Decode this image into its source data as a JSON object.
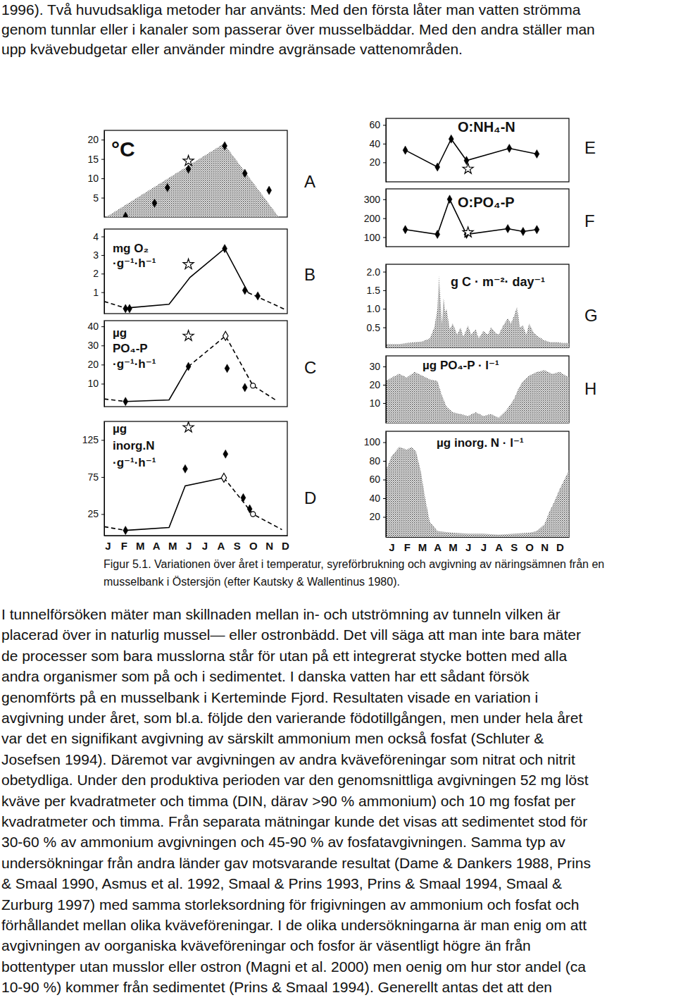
{
  "text_top": [
    "1996). Två huvudsakliga metoder har använts: Med den första låter man vatten strömma",
    "genom tunnlar eller i kanaler som passerar över musselbäddar. Med den andra ställer man",
    "upp kvävebudgetar eller använder mindre avgränsade vattenområden."
  ],
  "chart_data": [
    {
      "type": "line",
      "title": "A",
      "y_label": [
        "°C"
      ],
      "xlim": [
        -0.22,
        11.13
      ],
      "ylim": [
        0,
        22.4
      ],
      "yticks": [
        5,
        10,
        15,
        20
      ],
      "tick_labels": "y",
      "series": [
        {
          "type": "area",
          "color": "#444444",
          "x": [
            -0.1,
            7.2,
            10.6
          ],
          "values": [
            0,
            19,
            0
          ]
        },
        {
          "type": "scatter",
          "marker": "diamond",
          "color": "#000000",
          "x": [
            1.1,
            2.9,
            3.7,
            5.0,
            7.25,
            8.5,
            10.0
          ],
          "values": [
            0.2,
            3.6,
            7.6,
            12.4,
            18.4,
            11.3,
            6.9
          ]
        },
        {
          "type": "scatter",
          "marker": "star",
          "color": "#000000",
          "x": [
            5.0
          ],
          "values": [
            14.5
          ]
        }
      ]
    },
    {
      "type": "line",
      "title": "B",
      "y_label": [
        "mg O₂",
        "·g⁻¹·h⁻¹"
      ],
      "xlim": [
        -0.22,
        11.13
      ],
      "ylim": [
        -0.15,
        4.4
      ],
      "yticks": [
        1,
        2,
        3,
        4
      ],
      "tick_labels": "y",
      "series": [
        {
          "type": "line",
          "line_style": "dashed",
          "color": "#000000",
          "x": [
            -0.22,
            1.1
          ],
          "values": [
            0.5,
            0.15
          ]
        },
        {
          "type": "line",
          "line_style": "solid",
          "color": "#000000",
          "x": [
            1.1,
            3.8,
            5.1,
            7.25,
            8.7
          ],
          "values": [
            0.15,
            0.35,
            1.8,
            3.35,
            0.98
          ]
        },
        {
          "type": "line",
          "line_style": "dashed",
          "color": "#000000",
          "x": [
            8.7,
            11.05
          ],
          "values": [
            0.98,
            0.05
          ]
        },
        {
          "type": "scatter",
          "marker": "diamond",
          "color": "#000000",
          "x": [
            1.1,
            1.35,
            7.25,
            8.5,
            9.3
          ],
          "values": [
            0.12,
            0.12,
            3.35,
            1.1,
            0.8
          ]
        },
        {
          "type": "scatter",
          "marker": "star",
          "color": "#000000",
          "x": [
            5.0
          ],
          "values": [
            2.5
          ]
        }
      ]
    },
    {
      "type": "line",
      "title": "C",
      "y_label": [
        "µg",
        "PO₄-P",
        "·g⁻¹·h⁻¹"
      ],
      "xlim": [
        -0.22,
        11.13
      ],
      "ylim": [
        -2,
        43
      ],
      "yticks": [
        10,
        20,
        30,
        40
      ],
      "tick_labels": "y",
      "series": [
        {
          "type": "line",
          "line_style": "dashed",
          "color": "#000000",
          "x": [
            -0.22,
            1.1
          ],
          "values": [
            2,
            0.7
          ]
        },
        {
          "type": "line",
          "line_style": "solid",
          "color": "#000000",
          "x": [
            1.1,
            3.8,
            5.0
          ],
          "values": [
            0.7,
            1.5,
            19
          ]
        },
        {
          "type": "line",
          "line_style": "dashed",
          "color": "#000000",
          "x": [
            5.0,
            7.3,
            9.0,
            10.4
          ],
          "values": [
            19,
            35,
            9,
            1.5
          ]
        },
        {
          "type": "scatter",
          "marker": "diamond",
          "color": "#000000",
          "x": [
            1.1,
            5.0,
            7.4,
            8.5
          ],
          "values": [
            0.7,
            19,
            18,
            8
          ]
        },
        {
          "type": "scatter",
          "marker": "open_diamond",
          "color": "#000000",
          "x": [
            7.3
          ],
          "values": [
            35
          ]
        },
        {
          "type": "scatter",
          "marker": "open_circle",
          "color": "#000000",
          "x": [
            9.0
          ],
          "values": [
            9
          ]
        },
        {
          "type": "scatter",
          "marker": "star",
          "color": "#000000",
          "x": [
            5.0
          ],
          "values": [
            35
          ]
        }
      ]
    },
    {
      "type": "line",
      "title": "D",
      "y_label": [
        "µg",
        "inorg.N",
        "·g⁻¹·h⁻¹"
      ],
      "xlim": [
        -0.22,
        11.13
      ],
      "ylim": [
        -4,
        150
      ],
      "yticks": [
        25,
        75,
        125
      ],
      "xticks": [
        {
          "value": 0,
          "label": "J"
        },
        {
          "value": 1,
          "label": "F"
        },
        {
          "value": 2,
          "label": "M"
        },
        {
          "value": 3,
          "label": "A"
        },
        {
          "value": 4,
          "label": "M"
        },
        {
          "value": 5,
          "label": "J"
        },
        {
          "value": 6,
          "label": "J"
        },
        {
          "value": 7,
          "label": "A"
        },
        {
          "value": 8,
          "label": "S"
        },
        {
          "value": 9,
          "label": "O"
        },
        {
          "value": 10,
          "label": "N"
        },
        {
          "value": 11,
          "label": "D"
        }
      ],
      "series": [
        {
          "type": "line",
          "line_style": "dashed",
          "color": "#000000",
          "x": [
            -0.22,
            1.1
          ],
          "values": [
            8,
            3
          ]
        },
        {
          "type": "line",
          "line_style": "solid",
          "color": "#000000",
          "x": [
            1.1,
            3.8,
            4.8,
            7.2
          ],
          "values": [
            3,
            7,
            63,
            74
          ]
        },
        {
          "type": "line",
          "line_style": "dashed",
          "color": "#000000",
          "x": [
            7.2,
            9.0,
            10.8
          ],
          "values": [
            74,
            25,
            4
          ]
        },
        {
          "type": "scatter",
          "marker": "diamond",
          "color": "#000000",
          "x": [
            1.1,
            4.8,
            7.3,
            8.4,
            8.8
          ],
          "values": [
            3,
            86,
            106,
            47,
            32
          ]
        },
        {
          "type": "scatter",
          "marker": "open_diamond",
          "color": "#000000",
          "x": [
            7.2
          ],
          "values": [
            74
          ]
        },
        {
          "type": "scatter",
          "marker": "open_circle",
          "color": "#000000",
          "x": [
            9.0
          ],
          "values": [
            25
          ]
        },
        {
          "type": "scatter",
          "marker": "star",
          "color": "#000000",
          "x": [
            5.0
          ],
          "values": [
            142
          ]
        }
      ]
    },
    {
      "type": "line",
      "title": "E",
      "y_label": [
        "O:NH₄-N"
      ],
      "xlim": [
        -0.37,
        11.6
      ],
      "ylim": [
        -0.8,
        67
      ],
      "yticks": [
        20,
        40,
        60
      ],
      "tick_labels": "y",
      "series": [
        {
          "type": "line",
          "line_style": "solid",
          "marker": "diamond",
          "color": "#000000",
          "x": [
            0.9,
            3.0,
            3.9,
            4.9,
            7.7,
            9.5
          ],
          "values": [
            33,
            15,
            45,
            22,
            35,
            29
          ]
        },
        {
          "type": "scatter",
          "marker": "star",
          "color": "#000000",
          "x": [
            5.0
          ],
          "values": [
            13
          ]
        }
      ]
    },
    {
      "type": "line",
      "title": "F",
      "y_label": [
        "O:PO₄-P"
      ],
      "xlim": [
        -0.37,
        11.6
      ],
      "ylim": [
        50,
        355
      ],
      "yticks": [
        100,
        200,
        300
      ],
      "tick_labels": "y",
      "series": [
        {
          "type": "line",
          "line_style": "solid",
          "marker": "diamond",
          "color": "#000000",
          "x": [
            0.9,
            3.0,
            3.8,
            4.9,
            7.6,
            8.6,
            9.5
          ],
          "values": [
            140,
            115,
            300,
            115,
            145,
            130,
            140
          ]
        },
        {
          "type": "scatter",
          "marker": "star",
          "color": "#000000",
          "x": [
            5.0
          ],
          "values": [
            125
          ]
        }
      ]
    },
    {
      "type": "area",
      "title": "G",
      "y_label": [
        "g C · m⁻²· day⁻¹"
      ],
      "xlim": [
        -0.37,
        11.6
      ],
      "ylim": [
        -0.04,
        2.2
      ],
      "yticks": [
        0.5,
        {
          "value": 1,
          "label": "1.0"
        },
        1.5,
        {
          "value": 2,
          "label": "2.0"
        }
      ],
      "tick_labels": "y",
      "series": [
        {
          "type": "area",
          "color": "#444444",
          "x": [
            -0.37,
            0.5,
            1,
            1.5,
            2,
            2.5,
            2.8,
            3.0,
            3.1,
            3.2,
            3.3,
            3.4,
            3.5,
            3.6,
            3.8,
            4.0,
            4.3,
            4.5,
            4.7,
            5.0,
            5.2,
            5.5,
            5.7,
            6.0,
            6.3,
            6.5,
            6.8,
            7.0,
            7.3,
            7.6,
            7.8,
            8.0,
            8.2,
            8.4,
            8.6,
            8.8,
            9.0,
            9.3,
            9.6,
            10.0,
            10.4,
            10.8,
            11.2,
            11.6
          ],
          "values": [
            0.05,
            0.05,
            0.08,
            0.1,
            0.12,
            0.2,
            0.5,
            1.0,
            1.9,
            1.2,
            0.6,
            1.3,
            0.9,
            1.0,
            0.45,
            0.6,
            0.3,
            0.5,
            0.25,
            0.55,
            0.3,
            0.45,
            0.2,
            0.4,
            0.3,
            0.5,
            0.35,
            0.3,
            0.55,
            0.75,
            0.6,
            0.8,
            1.05,
            0.5,
            0.55,
            0.3,
            0.6,
            0.35,
            0.25,
            0.15,
            0.1,
            0.1,
            0.08,
            0.08
          ]
        }
      ]
    },
    {
      "type": "area",
      "title": "H",
      "y_label": [
        "µg PO₄-P · l⁻¹"
      ],
      "xlim": [
        -0.37,
        11.6
      ],
      "ylim": [
        -0.8,
        35.8
      ],
      "yticks": [
        10,
        20,
        30
      ],
      "tick_labels": "y",
      "series": [
        {
          "type": "area",
          "color": "#444444",
          "x": [
            -0.37,
            0,
            0.5,
            1,
            1.5,
            2,
            2.5,
            3,
            3.3,
            3.6,
            4,
            4.5,
            5,
            5.5,
            6,
            6.5,
            7,
            7.5,
            8,
            8.3,
            8.6,
            9,
            9.5,
            10,
            10.5,
            11,
            11.6
          ],
          "values": [
            22,
            24,
            26,
            24,
            27,
            25,
            23,
            22,
            14,
            8,
            5,
            4,
            3,
            5,
            3,
            4,
            2,
            6,
            12,
            18,
            22,
            25,
            27,
            28,
            26,
            27,
            24
          ]
        }
      ]
    },
    {
      "type": "area",
      "y_label": [
        "µg inorg. N · l⁻¹"
      ],
      "xlim": [
        -0.37,
        11.6
      ],
      "ylim": [
        -1.5,
        111.7
      ],
      "yticks": [
        20,
        40,
        60,
        80,
        100
      ],
      "xticks": [
        {
          "value": 0,
          "label": "J"
        },
        {
          "value": 1,
          "label": "F"
        },
        {
          "value": 2,
          "label": "M"
        },
        {
          "value": 3,
          "label": "A"
        },
        {
          "value": 4,
          "label": "M"
        },
        {
          "value": 5,
          "label": "J"
        },
        {
          "value": 6,
          "label": "J"
        },
        {
          "value": 7,
          "label": "A"
        },
        {
          "value": 8,
          "label": "S"
        },
        {
          "value": 9,
          "label": "O"
        },
        {
          "value": 10,
          "label": "N"
        },
        {
          "value": 11,
          "label": "D"
        }
      ],
      "series": [
        {
          "type": "area",
          "color": "#444444",
          "x": [
            -0.37,
            0,
            0.5,
            1,
            1.3,
            1.6,
            1.9,
            2.2,
            2.5,
            3,
            4,
            5,
            6,
            7,
            8,
            9,
            9.5,
            10,
            10.3,
            10.6,
            11,
            11.3,
            11.6
          ],
          "values": [
            70,
            85,
            95,
            92,
            95,
            90,
            70,
            40,
            15,
            5,
            3,
            2,
            2,
            1,
            2,
            3,
            5,
            12,
            25,
            35,
            50,
            60,
            70
          ]
        }
      ]
    }
  ],
  "caption": [
    "Figur 5.1. Variationen över året i temperatur, syreförbrukning och avgivning av näringsämnen från en",
    "musselbank i Östersjön (efter Kautsky & Wallentinus 1980)."
  ],
  "text_bottom": [
    "I tunnelförsöken mäter man skillnaden mellan in- och utströmning av tunneln vilken är",
    "placerad över in naturlig mussel— eller ostronbädd. Det vill säga att man inte bara mäter",
    "de processer som bara musslorna står för utan på ett integrerat stycke botten med alla",
    "andra organismer som på och i sedimentet. I danska vatten har ett sådant försök",
    "genomförts på en musselbank i Kerteminde Fjord. Resultaten visade en variation i",
    "avgivning under året, som bl.a. följde den varierande födotillgången, men under hela året",
    "var det en signifikant avgivning av särskilt ammonium men också fosfat (Schluter &",
    "Josefsen 1994). Däremot var avgivningen av andra kväveföreningar som nitrat och nitrit",
    "obetydliga. Under den produktiva perioden var den genomsnittliga avgivningen 52 mg löst",
    "kväve per kvadratmeter och timma (DIN, därav >90 % ammonium) och 10 mg fosfat per",
    "kvadratmeter och timma. Från separata mätningar kunde det visas att sedimentet stod för",
    "30-60 % av ammonium avgivningen och 45-90 % av fosfatavgivningen. Samma typ av",
    "undersökningar från andra länder gav motsvarande resultat (Dame & Dankers 1988, Prins",
    "& Smaal 1990, Asmus et al. 1992, Smaal & Prins 1993, Prins & Smaal 1994, Smaal &",
    "Zurburg 1997) med samma storleksordning för frigivningen av ammonium och fosfat och",
    "förhållandet mellan olika kväveföreningar. I de olika undersökningarna är man enig om att",
    "avgivningen av oorganiska kväveföreningar och fosfor är väsentligt högre än från",
    "bottentyper utan musslor eller ostron (Magni et al. 2000) men oenig om hur stor andel (ca",
    "10-90 %) kommer från sedimentet (Prins & Smaal 1994). Generellt antas det att den"
  ]
}
